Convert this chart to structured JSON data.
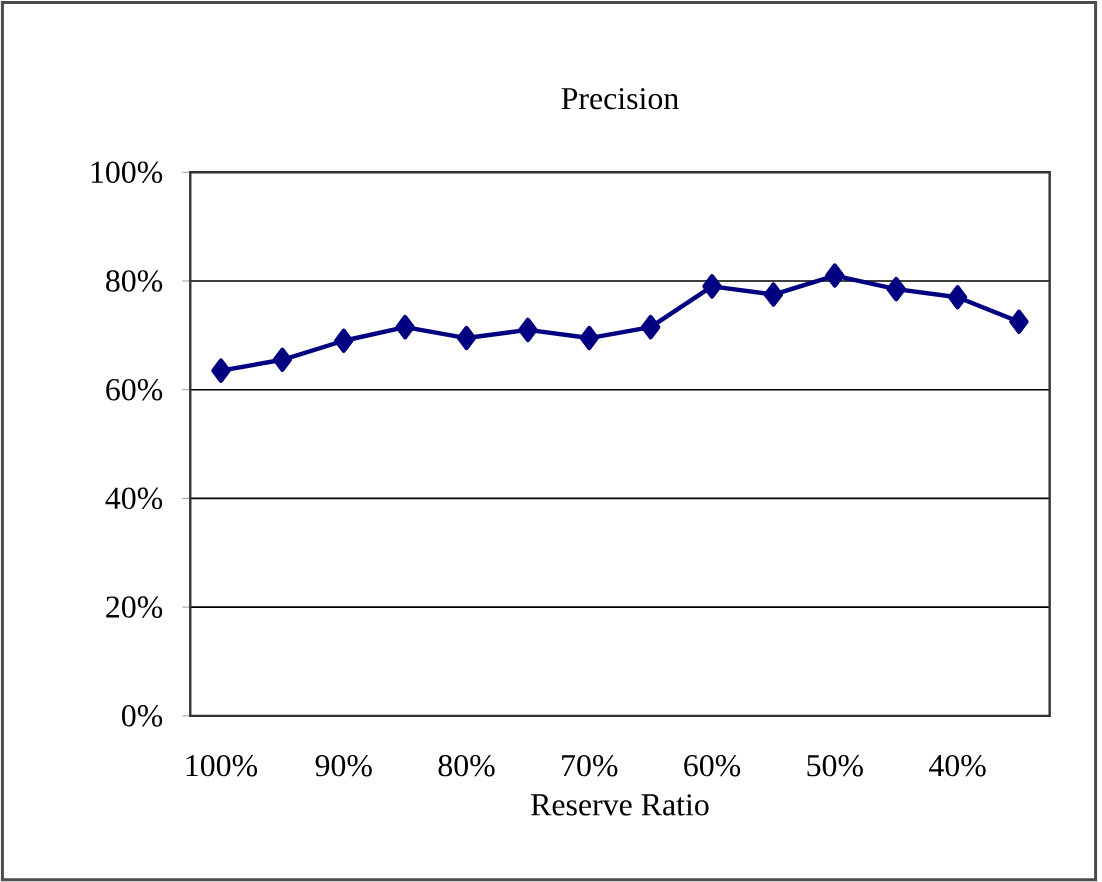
{
  "chart_data": {
    "type": "line",
    "title": "Precision",
    "xlabel": "Reserve Ratio",
    "categories": [
      "100%",
      null,
      "90%",
      null,
      "80%",
      null,
      "70%",
      null,
      "60%",
      null,
      "50%",
      null,
      "40%",
      null
    ],
    "series": [
      {
        "color": "#000080",
        "values": [
          63.5,
          65.5,
          69,
          71.5,
          69.5,
          71,
          69.5,
          71.5,
          79,
          77.5,
          81,
          78.5,
          77,
          72.5
        ]
      }
    ],
    "ylim": [
      0,
      100
    ],
    "yticks": [
      {
        "value": 0,
        "label": "0%"
      },
      {
        "value": 20,
        "label": "20%"
      },
      {
        "value": 40,
        "label": "40%"
      },
      {
        "value": 60,
        "label": "60%"
      },
      {
        "value": 80,
        "label": "80%"
      },
      {
        "value": 100,
        "label": "100%"
      }
    ],
    "grid": "y",
    "marker": "diamond",
    "line_style": "solid"
  }
}
